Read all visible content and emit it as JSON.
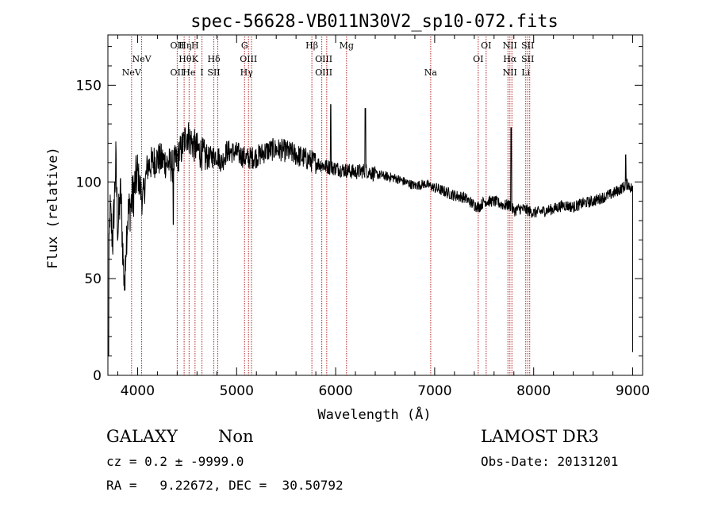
{
  "chart_data": {
    "type": "line",
    "title": "spec-56628-VB011N30V2_sp10-072.fits",
    "xlabel": "Wavelength (Å)",
    "ylabel": "Flux (relative)",
    "xlim": [
      3700,
      9100
    ],
    "ylim": [
      0,
      176
    ],
    "xticks": [
      4000,
      5000,
      6000,
      7000,
      8000,
      9000
    ],
    "xtick_labels": [
      "4000",
      "5000",
      "6000",
      "7000",
      "8000",
      "9000"
    ],
    "yticks": [
      0,
      50,
      100,
      150
    ],
    "ytick_labels": [
      "0",
      "50",
      "100",
      "150"
    ],
    "grid": false,
    "line_color": "#000000",
    "marker_color": "#b22222",
    "series": [
      {
        "name": "spectrum",
        "anchors": [
          [
            3700,
            30
          ],
          [
            3720,
            85
          ],
          [
            3750,
            70
          ],
          [
            3780,
            110
          ],
          [
            3800,
            75
          ],
          [
            3830,
            95
          ],
          [
            3860,
            52
          ],
          [
            3900,
            82
          ],
          [
            3950,
            92
          ],
          [
            4000,
            105
          ],
          [
            4050,
            90
          ],
          [
            4100,
            108
          ],
          [
            4200,
            112
          ],
          [
            4300,
            110
          ],
          [
            4350,
            108
          ],
          [
            4400,
            112
          ],
          [
            4450,
            118
          ],
          [
            4500,
            125
          ],
          [
            4550,
            120
          ],
          [
            4600,
            117
          ],
          [
            4700,
            112
          ],
          [
            4800,
            114
          ],
          [
            4850,
            110
          ],
          [
            4900,
            116
          ],
          [
            5000,
            115
          ],
          [
            5100,
            112
          ],
          [
            5200,
            113
          ],
          [
            5300,
            116
          ],
          [
            5400,
            117
          ],
          [
            5500,
            116
          ],
          [
            5600,
            114
          ],
          [
            5700,
            112
          ],
          [
            5800,
            110
          ],
          [
            5900,
            108
          ],
          [
            6000,
            107
          ],
          [
            6100,
            106
          ],
          [
            6200,
            105
          ],
          [
            6300,
            106
          ],
          [
            6400,
            104
          ],
          [
            6500,
            103
          ],
          [
            6600,
            102
          ],
          [
            6700,
            100
          ],
          [
            6800,
            98
          ],
          [
            6900,
            99
          ],
          [
            7000,
            97
          ],
          [
            7100,
            95
          ],
          [
            7200,
            93
          ],
          [
            7300,
            92
          ],
          [
            7400,
            88
          ],
          [
            7450,
            87
          ],
          [
            7500,
            90
          ],
          [
            7600,
            90
          ],
          [
            7700,
            88
          ],
          [
            7760,
            88
          ],
          [
            7800,
            85
          ],
          [
            7850,
            86
          ],
          [
            7900,
            86
          ],
          [
            8000,
            84
          ],
          [
            8100,
            85
          ],
          [
            8200,
            86
          ],
          [
            8300,
            88
          ],
          [
            8400,
            87
          ],
          [
            8500,
            89
          ],
          [
            8600,
            90
          ],
          [
            8700,
            92
          ],
          [
            8800,
            94
          ],
          [
            8900,
            97
          ],
          [
            8950,
            99
          ],
          [
            9000,
            96
          ]
        ],
        "features": [
          {
            "wavelength": 6300,
            "peak": 138
          },
          {
            "wavelength": 7773,
            "peak": 128
          },
          {
            "wavelength": 3870,
            "peak": 44
          },
          {
            "wavelength": 4360,
            "peak": 78
          },
          {
            "wavelength": 5950,
            "peak": 140
          },
          {
            "wavelength": 8930,
            "peak": 114
          },
          {
            "wavelength": 3705,
            "peak": 10
          }
        ]
      }
    ],
    "line_markers": [
      {
        "label": "NeV",
        "wavelength": 3939,
        "row": 3
      },
      {
        "label": "NeV",
        "wavelength": 4041,
        "row": 2
      },
      {
        "label": "OII",
        "wavelength": 4400,
        "row": 1
      },
      {
        "label": "OII",
        "wavelength": 4400,
        "row": 3
      },
      {
        "label": "Hη",
        "wavelength": 4480,
        "row": 1
      },
      {
        "label": "Hθ",
        "wavelength": 4480,
        "row": 2
      },
      {
        "label": "He",
        "wavelength": 4520,
        "row": 3
      },
      {
        "label": "H",
        "wavelength": 4580,
        "row": 1
      },
      {
        "label": "K",
        "wavelength": 4580,
        "row": 2
      },
      {
        "label": "I",
        "wavelength": 4650,
        "row": 3
      },
      {
        "label": "Hδ",
        "wavelength": 4770,
        "row": 2
      },
      {
        "label": "SII",
        "wavelength": 4770,
        "row": 3
      },
      {
        "label": "G",
        "wavelength": 5080,
        "row": 1
      },
      {
        "label": "OIII",
        "wavelength": 5120,
        "row": 2
      },
      {
        "label": "Hγ",
        "wavelength": 5100,
        "row": 3
      },
      {
        "label": "Hβ",
        "wavelength": 5760,
        "row": 1
      },
      {
        "label": "OIII",
        "wavelength": 5880,
        "row": 2
      },
      {
        "label": "OIII",
        "wavelength": 5880,
        "row": 3
      },
      {
        "label": "Mg",
        "wavelength": 6110,
        "row": 1
      },
      {
        "label": "Na",
        "wavelength": 6960,
        "row": 3
      },
      {
        "label": "OI",
        "wavelength": 7520,
        "row": 1
      },
      {
        "label": "OI",
        "wavelength": 7440,
        "row": 2
      },
      {
        "label": "NII",
        "wavelength": 7760,
        "row": 1
      },
      {
        "label": "Hα",
        "wavelength": 7760,
        "row": 2
      },
      {
        "label": "NII",
        "wavelength": 7760,
        "row": 3
      },
      {
        "label": "SII",
        "wavelength": 7940,
        "row": 1
      },
      {
        "label": "SII",
        "wavelength": 7940,
        "row": 2
      },
      {
        "label": "Li",
        "wavelength": 7920,
        "row": 3
      }
    ],
    "marker_lines": [
      3939,
      4041,
      4400,
      4470,
      4520,
      4580,
      4650,
      4770,
      4810,
      5080,
      5120,
      5150,
      5760,
      5860,
      5910,
      6110,
      6960,
      7440,
      7520,
      7740,
      7760,
      7780,
      7920,
      7940,
      7960
    ]
  },
  "info": {
    "object_class": "GALAXY",
    "subclass": "Non",
    "survey": "LAMOST DR3",
    "cz_line": "cz = 0.2 ± -9999.0",
    "obs_date": "Obs-Date: 20131201",
    "radec_line": "RA =   9.22672, DEC =  30.50792"
  }
}
